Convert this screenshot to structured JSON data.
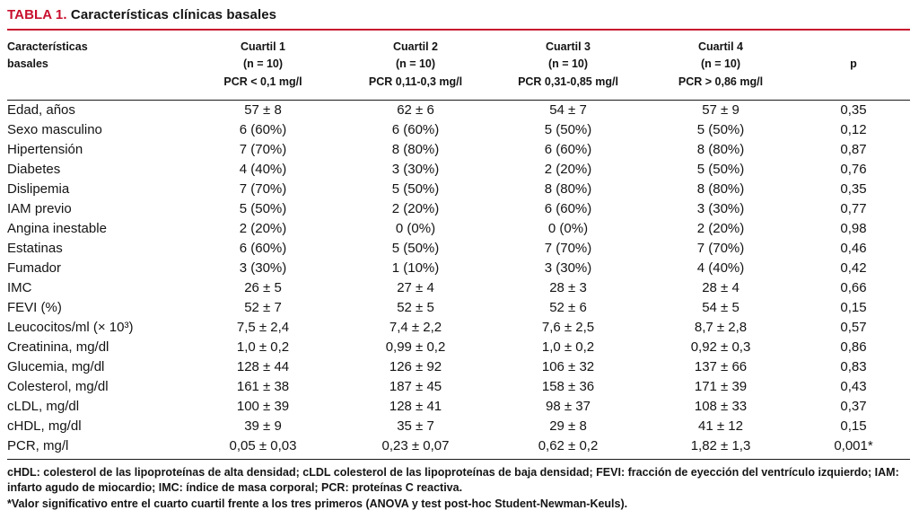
{
  "accent_color": "#c8102e",
  "title": {
    "label": "TABLA 1.",
    "text": "Características clínicas basales"
  },
  "table": {
    "header": {
      "label_line1": "Características",
      "label_line2": "basales",
      "quartiles": [
        {
          "line1": "Cuartil 1",
          "line2": "(n = 10)",
          "line3": "PCR < 0,1 mg/l"
        },
        {
          "line1": "Cuartil 2",
          "line2": "(n = 10)",
          "line3": "PCR 0,11-0,3 mg/l"
        },
        {
          "line1": "Cuartil 3",
          "line2": "(n = 10)",
          "line3": "PCR 0,31-0,85 mg/l"
        },
        {
          "line1": "Cuartil 4",
          "line2": "(n = 10)",
          "line3": "PCR > 0,86 mg/l"
        }
      ],
      "p": "p"
    },
    "rows": [
      {
        "label": "Edad, años",
        "values": [
          "57 ± 8",
          "62 ± 6",
          "54 ± 7",
          "57 ± 9",
          "0,35"
        ]
      },
      {
        "label": "Sexo masculino",
        "values": [
          "6 (60%)",
          "6 (60%)",
          "5 (50%)",
          "5 (50%)",
          "0,12"
        ]
      },
      {
        "label": "Hipertensión",
        "values": [
          "7 (70%)",
          "8 (80%)",
          "6 (60%)",
          "8 (80%)",
          "0,87"
        ]
      },
      {
        "label": "Diabetes",
        "values": [
          "4 (40%)",
          "3 (30%)",
          "2 (20%)",
          "5 (50%)",
          "0,76"
        ]
      },
      {
        "label": "Dislipemia",
        "values": [
          "7 (70%)",
          "5 (50%)",
          "8 (80%)",
          "8 (80%)",
          "0,35"
        ]
      },
      {
        "label": "IAM previo",
        "values": [
          "5 (50%)",
          "2 (20%)",
          "6 (60%)",
          "3 (30%)",
          "0,77"
        ]
      },
      {
        "label": "Angina inestable",
        "values": [
          "2 (20%)",
          "0 (0%)",
          "0 (0%)",
          "2 (20%)",
          "0,98"
        ]
      },
      {
        "label": "Estatinas",
        "values": [
          "6 (60%)",
          "5 (50%)",
          "7 (70%)",
          "7 (70%)",
          "0,46"
        ]
      },
      {
        "label": "Fumador",
        "values": [
          "3 (30%)",
          "1 (10%)",
          "3 (30%)",
          "4 (40%)",
          "0,42"
        ]
      },
      {
        "label": "IMC",
        "values": [
          "26 ± 5",
          "27 ± 4",
          "28 ± 3",
          "28 ± 4",
          "0,66"
        ]
      },
      {
        "label": "FEVI (%)",
        "values": [
          "52 ± 7",
          "52 ± 5",
          "52 ± 6",
          "54 ± 5",
          "0,15"
        ]
      },
      {
        "label": "Leucocitos/ml (× 10³)",
        "values": [
          "7,5 ± 2,4",
          "7,4 ± 2,2",
          "7,6 ± 2,5",
          "8,7 ± 2,8",
          "0,57"
        ]
      },
      {
        "label": "Creatinina, mg/dl",
        "values": [
          "1,0 ± 0,2",
          "0,99 ± 0,2",
          "1,0 ± 0,2",
          "0,92 ± 0,3",
          "0,86"
        ]
      },
      {
        "label": "Glucemia, mg/dl",
        "values": [
          "128 ± 44",
          "126 ± 92",
          "106 ± 32",
          "137 ± 66",
          "0,83"
        ]
      },
      {
        "label": "Colesterol, mg/dl",
        "values": [
          "161 ± 38",
          "187 ± 45",
          "158 ± 36",
          "171 ± 39",
          "0,43"
        ]
      },
      {
        "label": "cLDL, mg/dl",
        "values": [
          "100 ± 39",
          "128 ± 41",
          "98 ± 37",
          "108 ± 33",
          "0,37"
        ]
      },
      {
        "label": "cHDL, mg/dl",
        "values": [
          "39 ± 9",
          "35 ± 7",
          "29 ± 8",
          "41 ± 12",
          "0,15"
        ]
      },
      {
        "label": "PCR, mg/l",
        "values": [
          "0,05 ± 0,03",
          "0,23 ± 0,07",
          "0,62 ± 0,2",
          "1,82 ± 1,3",
          "0,001*"
        ]
      }
    ]
  },
  "footnotes": [
    "cHDL: colesterol de las lipoproteínas de alta densidad; cLDL colesterol de las lipoproteínas de baja densidad; FEVI: fracción de eyección del ventrículo izquierdo; IAM: infarto agudo de miocardio; IMC: índice de masa corporal; PCR: proteínas C reactiva.",
    "*Valor significativo entre el cuarto cuartil frente a los tres primeros (ANOVA y test post-hoc Student-Newman-Keuls)."
  ]
}
